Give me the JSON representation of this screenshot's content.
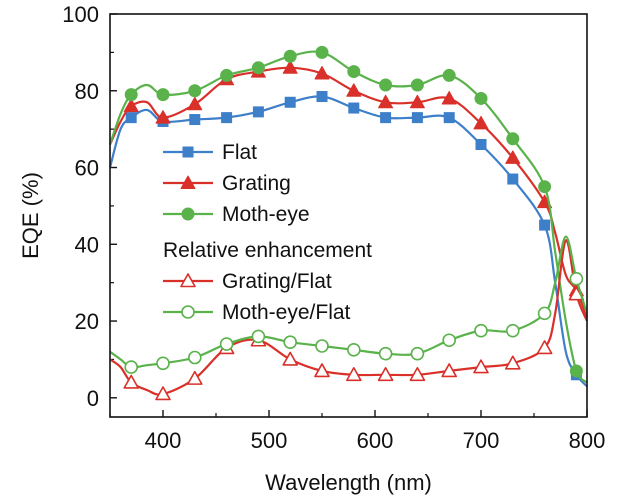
{
  "chart_data": {
    "type": "line",
    "title": "",
    "xlabel": "Wavelength (nm)",
    "ylabel": "EQE (%)",
    "xlim": [
      350,
      800
    ],
    "ylim": [
      -5,
      100
    ],
    "x_ticks": [
      400,
      500,
      600,
      700,
      800
    ],
    "y_ticks": [
      0,
      20,
      40,
      60,
      80,
      100
    ],
    "legend_placement": "center-left",
    "legend_group_title": "Relative enhancement",
    "series": [
      {
        "name": "Flat",
        "color": "#3d7fc9",
        "marker": "square",
        "filled": true,
        "curve": [
          [
            350,
            60
          ],
          [
            360,
            70
          ],
          [
            370,
            73
          ],
          [
            385,
            75
          ],
          [
            400,
            72
          ],
          [
            430,
            72.5
          ],
          [
            460,
            73
          ],
          [
            490,
            74.5
          ],
          [
            520,
            77
          ],
          [
            550,
            78.5
          ],
          [
            580,
            75.5
          ],
          [
            610,
            73
          ],
          [
            640,
            73
          ],
          [
            670,
            73
          ],
          [
            700,
            66
          ],
          [
            730,
            57
          ],
          [
            760,
            45
          ],
          [
            770,
            30
          ],
          [
            780,
            12
          ],
          [
            790,
            6
          ],
          [
            800,
            3
          ]
        ],
        "points": [
          [
            370,
            73
          ],
          [
            400,
            72
          ],
          [
            430,
            72.5
          ],
          [
            460,
            73
          ],
          [
            490,
            74.5
          ],
          [
            520,
            77
          ],
          [
            550,
            78.5
          ],
          [
            580,
            75.5
          ],
          [
            610,
            73
          ],
          [
            640,
            73
          ],
          [
            670,
            73
          ],
          [
            700,
            66
          ],
          [
            730,
            57
          ],
          [
            760,
            45
          ],
          [
            790,
            6
          ]
        ]
      },
      {
        "name": "Grating",
        "color": "#d9302a",
        "marker": "triangle",
        "filled": true,
        "curve": [
          [
            350,
            66
          ],
          [
            360,
            72
          ],
          [
            370,
            76
          ],
          [
            385,
            77
          ],
          [
            400,
            73
          ],
          [
            430,
            76.5
          ],
          [
            460,
            83
          ],
          [
            490,
            85
          ],
          [
            520,
            86
          ],
          [
            550,
            84.5
          ],
          [
            580,
            80
          ],
          [
            610,
            77
          ],
          [
            640,
            77
          ],
          [
            670,
            78
          ],
          [
            700,
            71.5
          ],
          [
            730,
            62.5
          ],
          [
            760,
            51
          ],
          [
            770,
            43
          ],
          [
            780,
            32
          ],
          [
            790,
            28
          ],
          [
            800,
            21
          ]
        ],
        "points": [
          [
            370,
            76
          ],
          [
            400,
            73
          ],
          [
            430,
            76.5
          ],
          [
            460,
            83
          ],
          [
            490,
            85
          ],
          [
            520,
            86
          ],
          [
            550,
            84.5
          ],
          [
            580,
            80
          ],
          [
            610,
            77
          ],
          [
            640,
            77
          ],
          [
            670,
            78
          ],
          [
            700,
            71.5
          ],
          [
            730,
            62.5
          ],
          [
            760,
            51
          ],
          [
            790,
            28
          ]
        ]
      },
      {
        "name": "Moth-eye",
        "color": "#5ab24b",
        "marker": "circle",
        "filled": true,
        "curve": [
          [
            350,
            66
          ],
          [
            360,
            74
          ],
          [
            370,
            79
          ],
          [
            385,
            81.5
          ],
          [
            400,
            79
          ],
          [
            430,
            80
          ],
          [
            460,
            84
          ],
          [
            490,
            86
          ],
          [
            520,
            89
          ],
          [
            550,
            90
          ],
          [
            580,
            85
          ],
          [
            610,
            81.5
          ],
          [
            640,
            81.5
          ],
          [
            670,
            84
          ],
          [
            700,
            78
          ],
          [
            730,
            67.5
          ],
          [
            760,
            55
          ],
          [
            770,
            38
          ],
          [
            780,
            20
          ],
          [
            790,
            7
          ],
          [
            800,
            4
          ]
        ],
        "points": [
          [
            370,
            79
          ],
          [
            400,
            79
          ],
          [
            430,
            80
          ],
          [
            460,
            84
          ],
          [
            490,
            86
          ],
          [
            520,
            89
          ],
          [
            550,
            90
          ],
          [
            580,
            85
          ],
          [
            610,
            81.5
          ],
          [
            640,
            81.5
          ],
          [
            670,
            84
          ],
          [
            700,
            78
          ],
          [
            730,
            67.5
          ],
          [
            760,
            55
          ],
          [
            790,
            7
          ]
        ]
      },
      {
        "name": "Grating/Flat",
        "color": "#d9302a",
        "marker": "triangle",
        "filled": false,
        "curve": [
          [
            350,
            10
          ],
          [
            360,
            8
          ],
          [
            370,
            4
          ],
          [
            385,
            2
          ],
          [
            400,
            1
          ],
          [
            430,
            5
          ],
          [
            460,
            13
          ],
          [
            490,
            15
          ],
          [
            520,
            10
          ],
          [
            550,
            7
          ],
          [
            580,
            6
          ],
          [
            610,
            6
          ],
          [
            640,
            6
          ],
          [
            670,
            7
          ],
          [
            700,
            8
          ],
          [
            730,
            9
          ],
          [
            760,
            13
          ],
          [
            770,
            22
          ],
          [
            780,
            41
          ],
          [
            790,
            27
          ],
          [
            800,
            20
          ]
        ],
        "points": [
          [
            370,
            4
          ],
          [
            400,
            1
          ],
          [
            430,
            5
          ],
          [
            460,
            13
          ],
          [
            490,
            15
          ],
          [
            520,
            10
          ],
          [
            550,
            7
          ],
          [
            580,
            6
          ],
          [
            610,
            6
          ],
          [
            640,
            6
          ],
          [
            670,
            7
          ],
          [
            700,
            8
          ],
          [
            730,
            9
          ],
          [
            760,
            13
          ],
          [
            790,
            27
          ]
        ]
      },
      {
        "name": "Moth-eye/Flat",
        "color": "#5ab24b",
        "marker": "circle",
        "filled": false,
        "curve": [
          [
            350,
            12
          ],
          [
            360,
            10
          ],
          [
            370,
            8
          ],
          [
            385,
            8.5
          ],
          [
            400,
            9
          ],
          [
            430,
            10.5
          ],
          [
            460,
            14
          ],
          [
            490,
            16
          ],
          [
            520,
            14.5
          ],
          [
            550,
            13.5
          ],
          [
            580,
            12.5
          ],
          [
            610,
            11.5
          ],
          [
            640,
            11.5
          ],
          [
            670,
            15
          ],
          [
            700,
            17.5
          ],
          [
            730,
            17.5
          ],
          [
            760,
            22
          ],
          [
            770,
            30
          ],
          [
            780,
            42
          ],
          [
            790,
            31
          ],
          [
            800,
            22
          ]
        ],
        "points": [
          [
            370,
            8
          ],
          [
            400,
            9
          ],
          [
            430,
            10.5
          ],
          [
            460,
            14
          ],
          [
            490,
            16
          ],
          [
            520,
            14.5
          ],
          [
            550,
            13.5
          ],
          [
            580,
            12.5
          ],
          [
            610,
            11.5
          ],
          [
            640,
            11.5
          ],
          [
            670,
            15
          ],
          [
            700,
            17.5
          ],
          [
            730,
            17.5
          ],
          [
            760,
            22
          ],
          [
            790,
            31
          ]
        ]
      }
    ]
  }
}
